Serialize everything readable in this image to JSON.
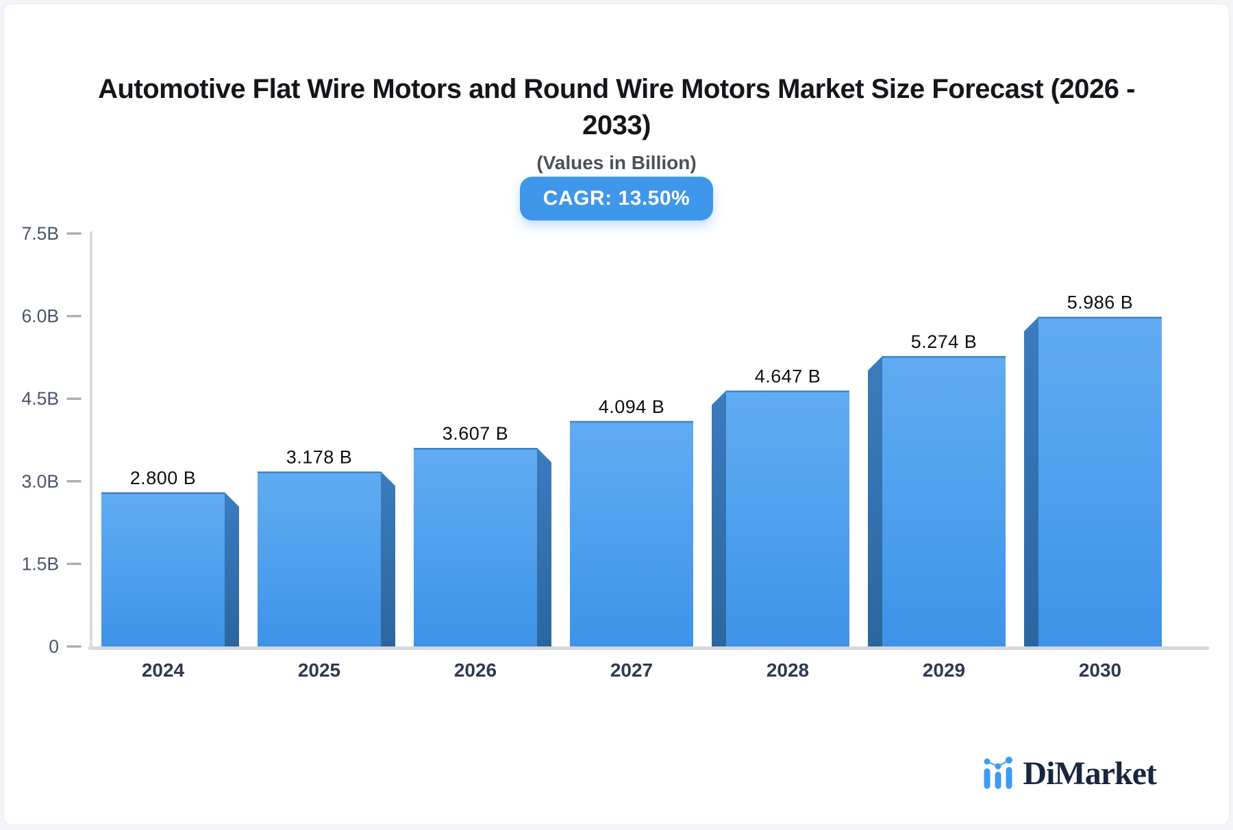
{
  "page": {
    "background_color": "#f3f5f8",
    "card_color": "#ffffff"
  },
  "header": {
    "title_lines": [
      "Automotive Flat Wire Motors and Round Wire Motors Market Size Forecast (2026 -",
      "2033)"
    ],
    "subtitle": "(Values in Billion)",
    "cagr_badge": "CAGR: 13.50%",
    "badge_color": "#3E97EA"
  },
  "chart_data": {
    "type": "bar",
    "title": "Automotive Flat Wire Motors and Round Wire Motors Market Size Forecast (2026 - 2033)",
    "subtitle": "(Values in Billion)",
    "annotation": "CAGR: 13.50%",
    "categories": [
      "2024",
      "2025",
      "2026",
      "2027",
      "2028",
      "2029",
      "2030"
    ],
    "values": [
      2.8,
      3.178,
      3.607,
      4.094,
      4.647,
      5.274,
      5.986
    ],
    "bar_labels": [
      "2.800 B",
      "3.178 B",
      "3.607 B",
      "4.094 B",
      "4.647 B",
      "5.274 B",
      "5.986 B"
    ],
    "unit": "Billion",
    "xlabel": "",
    "ylabel": "",
    "ylim": [
      0,
      7.5
    ],
    "yticks": [
      0,
      1.5,
      3.0,
      4.5,
      6.0,
      7.5
    ],
    "ytick_labels": [
      "0",
      "1.5B",
      "3.0B",
      "4.5B",
      "6.0B",
      "7.5B"
    ],
    "grid": false,
    "legend": null,
    "style": "3d-perspective-bars",
    "bar_face_color_top": "#60ACF2",
    "bar_face_color_bottom": "#3E93E8",
    "bar_top_edge_color": "#3E82C8",
    "bar_side_color_top": "#3B7CBE",
    "bar_side_color_bottom": "#2B669F",
    "axis_color": "#d9dbe1",
    "tick_color": "#a9aeb8",
    "ytick_text_color": "#4a5568",
    "xtick_text_color": "#2f3a4f",
    "value_label_color": "#0c0e11"
  },
  "footer": {
    "brand": "DiMarket"
  }
}
